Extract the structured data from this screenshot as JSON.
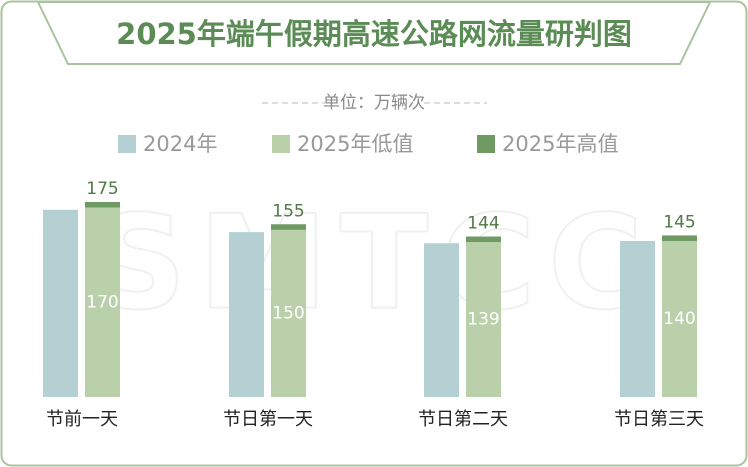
{
  "chart_data": {
    "type": "bar",
    "title": "2025年端午假期高速公路网流量研判图",
    "subtitle": "单位：万辆次",
    "watermark": "SMTCC",
    "categories": [
      "节前一天",
      "节日第一天",
      "节日第二天",
      "节日第三天"
    ],
    "series": [
      {
        "name": "2024年",
        "color": "#b5d0d3",
        "values": [
          168,
          148,
          138,
          140
        ]
      },
      {
        "name": "2025年低值",
        "color": "#bad0aa",
        "values": [
          170,
          150,
          139,
          140
        ]
      },
      {
        "name": "2025年高值",
        "color": "#6f9a62",
        "values": [
          175,
          155,
          144,
          145
        ]
      }
    ]
  }
}
